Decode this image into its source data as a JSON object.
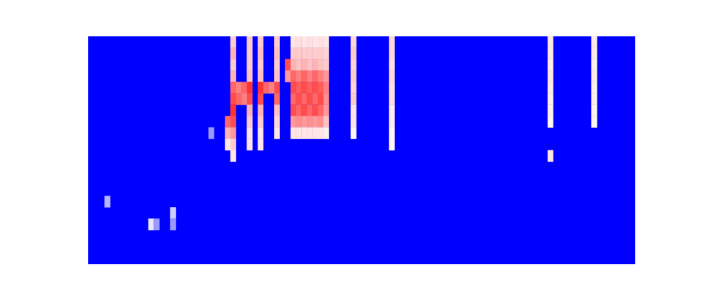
{
  "chart_data": {
    "type": "heatmap",
    "tick_labels": false,
    "xlim": [
      0,
      100
    ],
    "ylim": [
      0,
      20
    ],
    "zlim": [
      0,
      1
    ],
    "cells": [
      [
        3,
        5,
        0.35
      ],
      [
        11,
        3,
        0.45
      ],
      [
        12,
        3,
        0.3
      ],
      [
        15,
        4,
        0.4
      ],
      [
        15,
        3,
        0.3
      ],
      [
        22,
        11,
        0.3
      ],
      [
        26,
        19,
        0.6
      ],
      [
        26,
        18,
        0.65
      ],
      [
        26,
        17,
        0.6
      ],
      [
        26,
        16,
        0.65
      ],
      [
        26,
        15,
        0.8
      ],
      [
        26,
        14,
        0.85
      ],
      [
        26,
        13,
        0.9
      ],
      [
        26,
        12,
        0.85
      ],
      [
        26,
        11,
        0.7
      ],
      [
        26,
        10,
        0.6
      ],
      [
        26,
        9,
        0.55
      ],
      [
        25,
        12,
        0.8
      ],
      [
        25,
        11,
        0.65
      ],
      [
        25,
        10,
        0.55
      ],
      [
        27,
        15,
        0.75
      ],
      [
        27,
        14,
        0.8
      ],
      [
        29,
        19,
        0.6
      ],
      [
        29,
        18,
        0.6
      ],
      [
        29,
        17,
        0.6
      ],
      [
        29,
        16,
        0.62
      ],
      [
        29,
        15,
        0.9
      ],
      [
        29,
        14,
        0.85
      ],
      [
        29,
        13,
        0.65
      ],
      [
        29,
        12,
        0.6
      ],
      [
        29,
        11,
        0.55
      ],
      [
        29,
        10,
        0.55
      ],
      [
        28,
        15,
        0.8
      ],
      [
        28,
        14,
        0.75
      ],
      [
        31,
        19,
        0.6
      ],
      [
        31,
        18,
        0.62
      ],
      [
        31,
        17,
        0.6
      ],
      [
        31,
        16,
        0.62
      ],
      [
        31,
        15,
        0.9
      ],
      [
        31,
        14,
        0.85
      ],
      [
        31,
        13,
        0.65
      ],
      [
        31,
        12,
        0.6
      ],
      [
        31,
        11,
        0.55
      ],
      [
        31,
        10,
        0.55
      ],
      [
        32,
        15,
        0.8
      ],
      [
        34,
        19,
        0.6
      ],
      [
        34,
        18,
        0.62
      ],
      [
        34,
        17,
        0.6
      ],
      [
        34,
        16,
        0.62
      ],
      [
        34,
        15,
        0.85
      ],
      [
        34,
        14,
        0.8
      ],
      [
        34,
        13,
        0.62
      ],
      [
        34,
        12,
        0.58
      ],
      [
        34,
        11,
        0.55
      ],
      [
        33,
        15,
        0.75
      ],
      [
        36,
        17,
        0.85
      ],
      [
        36,
        16,
        0.7
      ],
      [
        37,
        19,
        0.55
      ],
      [
        37,
        18,
        0.6
      ],
      [
        37,
        17,
        0.65
      ],
      [
        37,
        16,
        0.8
      ],
      [
        37,
        15,
        0.85
      ],
      [
        37,
        14,
        0.8
      ],
      [
        37,
        13,
        0.85
      ],
      [
        37,
        12,
        0.7
      ],
      [
        37,
        11,
        0.55
      ],
      [
        38,
        19,
        0.56
      ],
      [
        38,
        18,
        0.6
      ],
      [
        38,
        17,
        0.62
      ],
      [
        38,
        16,
        0.75
      ],
      [
        38,
        15,
        0.82
      ],
      [
        38,
        14,
        0.85
      ],
      [
        38,
        13,
        0.8
      ],
      [
        38,
        12,
        0.72
      ],
      [
        38,
        11,
        0.55
      ],
      [
        39,
        19,
        0.55
      ],
      [
        39,
        18,
        0.6
      ],
      [
        39,
        17,
        0.65
      ],
      [
        39,
        16,
        0.8
      ],
      [
        39,
        15,
        0.85
      ],
      [
        39,
        14,
        0.8
      ],
      [
        39,
        13,
        0.85
      ],
      [
        39,
        12,
        0.7
      ],
      [
        39,
        11,
        0.55
      ],
      [
        40,
        19,
        0.56
      ],
      [
        40,
        18,
        0.6
      ],
      [
        40,
        17,
        0.62
      ],
      [
        40,
        16,
        0.75
      ],
      [
        40,
        15,
        0.82
      ],
      [
        40,
        14,
        0.85
      ],
      [
        40,
        13,
        0.8
      ],
      [
        40,
        12,
        0.72
      ],
      [
        40,
        11,
        0.55
      ],
      [
        41,
        19,
        0.55
      ],
      [
        41,
        18,
        0.6
      ],
      [
        41,
        17,
        0.65
      ],
      [
        41,
        16,
        0.8
      ],
      [
        41,
        15,
        0.85
      ],
      [
        41,
        14,
        0.8
      ],
      [
        41,
        13,
        0.85
      ],
      [
        41,
        12,
        0.7
      ],
      [
        41,
        11,
        0.55
      ],
      [
        42,
        19,
        0.56
      ],
      [
        42,
        18,
        0.6
      ],
      [
        42,
        17,
        0.62
      ],
      [
        42,
        16,
        0.75
      ],
      [
        42,
        15,
        0.82
      ],
      [
        42,
        14,
        0.85
      ],
      [
        42,
        13,
        0.8
      ],
      [
        42,
        12,
        0.72
      ],
      [
        42,
        11,
        0.55
      ],
      [
        43,
        19,
        0.55
      ],
      [
        43,
        18,
        0.58
      ],
      [
        43,
        17,
        0.6
      ],
      [
        43,
        16,
        0.7
      ],
      [
        43,
        15,
        0.75
      ],
      [
        43,
        14,
        0.72
      ],
      [
        43,
        13,
        0.7
      ],
      [
        43,
        12,
        0.62
      ],
      [
        43,
        11,
        0.53
      ],
      [
        48,
        19,
        0.58
      ],
      [
        48,
        18,
        0.6
      ],
      [
        48,
        17,
        0.58
      ],
      [
        48,
        16,
        0.6
      ],
      [
        48,
        15,
        0.58
      ],
      [
        48,
        14,
        0.6
      ],
      [
        48,
        13,
        0.55
      ],
      [
        48,
        12,
        0.55
      ],
      [
        48,
        11,
        0.52
      ],
      [
        55,
        19,
        0.58
      ],
      [
        55,
        18,
        0.58
      ],
      [
        55,
        17,
        0.56
      ],
      [
        55,
        16,
        0.58
      ],
      [
        55,
        15,
        0.56
      ],
      [
        55,
        14,
        0.56
      ],
      [
        55,
        13,
        0.54
      ],
      [
        55,
        12,
        0.54
      ],
      [
        55,
        11,
        0.52
      ],
      [
        55,
        10,
        0.52
      ],
      [
        84,
        19,
        0.55
      ],
      [
        84,
        18,
        0.55
      ],
      [
        84,
        17,
        0.54
      ],
      [
        84,
        16,
        0.55
      ],
      [
        84,
        15,
        0.54
      ],
      [
        84,
        14,
        0.53
      ],
      [
        84,
        13,
        0.53
      ],
      [
        84,
        12,
        0.52
      ],
      [
        84,
        9,
        0.55
      ],
      [
        92,
        19,
        0.54
      ],
      [
        92,
        18,
        0.54
      ],
      [
        92,
        17,
        0.53
      ],
      [
        92,
        16,
        0.54
      ],
      [
        92,
        15,
        0.53
      ],
      [
        92,
        14,
        0.53
      ],
      [
        92,
        13,
        0.52
      ],
      [
        92,
        12,
        0.52
      ]
    ]
  }
}
